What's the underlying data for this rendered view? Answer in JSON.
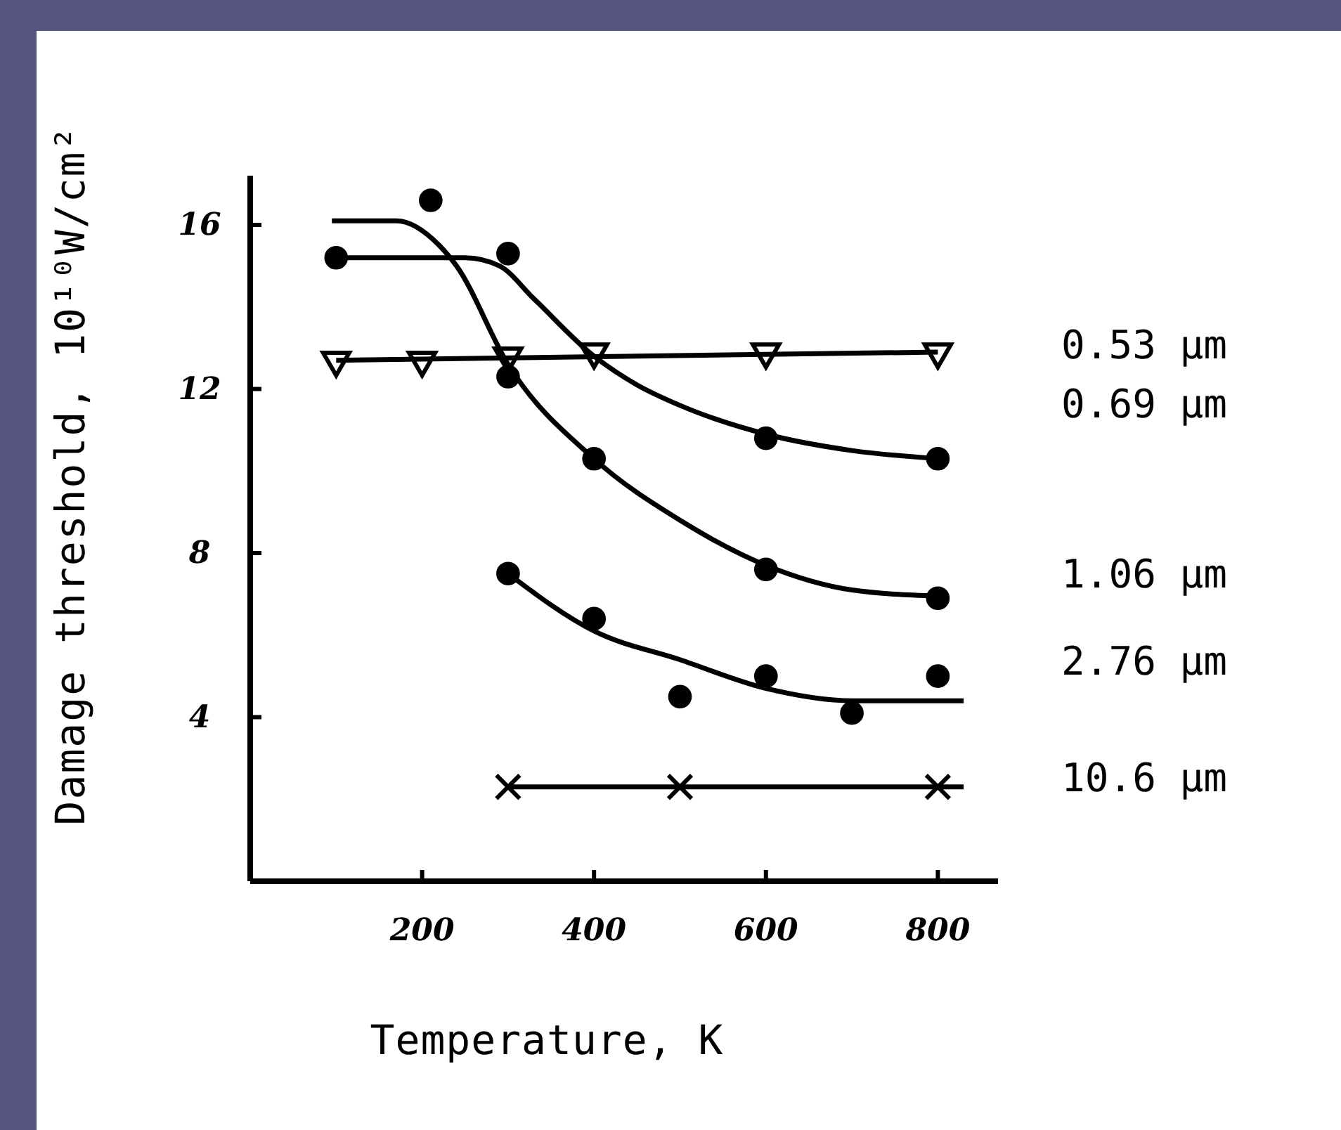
{
  "chart_data": {
    "type": "scatter",
    "xlabel": "Temperature, K",
    "ylabel": "Damage threshold, 10¹⁰W/cm²",
    "xlim": [
      0,
      870
    ],
    "ylim": [
      0,
      17.2
    ],
    "xticks": [
      200,
      400,
      600,
      800
    ],
    "yticks": [
      4,
      8,
      12,
      16
    ],
    "grid": false,
    "series": [
      {
        "name": "0.53 μm",
        "marker": "triangle",
        "color": "#000000",
        "x": [
          100,
          200,
          300,
          400,
          600,
          800
        ],
        "values": [
          12.7,
          12.7,
          12.8,
          12.9,
          12.9,
          12.9
        ]
      },
      {
        "name": "0.69 μm",
        "marker": "circle",
        "color": "#000000",
        "x": [
          100,
          300,
          600,
          800
        ],
        "values": [
          15.2,
          15.3,
          10.8,
          10.3
        ]
      },
      {
        "name": "1.06 μm",
        "marker": "circle",
        "color": "#000000",
        "x": [
          210,
          300,
          400,
          600,
          800
        ],
        "values": [
          16.6,
          12.3,
          10.3,
          7.6,
          6.9
        ]
      },
      {
        "name": "2.76 μm",
        "marker": "circle",
        "color": "#000000",
        "x": [
          300,
          400,
          500,
          600,
          700,
          800
        ],
        "values": [
          7.5,
          6.4,
          4.5,
          5.0,
          4.1,
          5.0
        ]
      },
      {
        "name": "10.6 μm",
        "marker": "cross",
        "color": "#000000",
        "x": [
          300,
          500,
          800
        ],
        "values": [
          2.3,
          2.3,
          2.3
        ]
      },
      {
        "type": "line",
        "marker": "none",
        "color": "#000000",
        "x": [
          100,
          800
        ],
        "values": [
          12.7,
          12.9
        ]
      },
      {
        "type": "line",
        "marker": "none",
        "color": "#000000",
        "x": [
          100,
          250,
          290,
          330,
          400,
          450,
          500,
          600,
          700,
          800
        ],
        "values": [
          15.2,
          15.2,
          15.0,
          14.2,
          12.8,
          12.1,
          11.6,
          10.9,
          10.5,
          10.3
        ]
      },
      {
        "type": "line",
        "marker": "none",
        "color": "#000000",
        "x": [
          95,
          170,
          220,
          240,
          300,
          400,
          500,
          600,
          700,
          800
        ],
        "values": [
          16.1,
          16.1,
          15.5,
          15.0,
          12.6,
          10.3,
          8.8,
          7.7,
          7.1,
          6.95
        ]
      },
      {
        "type": "line",
        "marker": "none",
        "color": "#000000",
        "x": [
          300,
          400,
          500,
          600,
          700,
          830
        ],
        "values": [
          7.5,
          6.1,
          5.4,
          4.7,
          4.4,
          4.4
        ]
      },
      {
        "type": "line",
        "marker": "none",
        "color": "#000000",
        "x": [
          300,
          830
        ],
        "values": [
          2.3,
          2.3
        ]
      }
    ]
  }
}
